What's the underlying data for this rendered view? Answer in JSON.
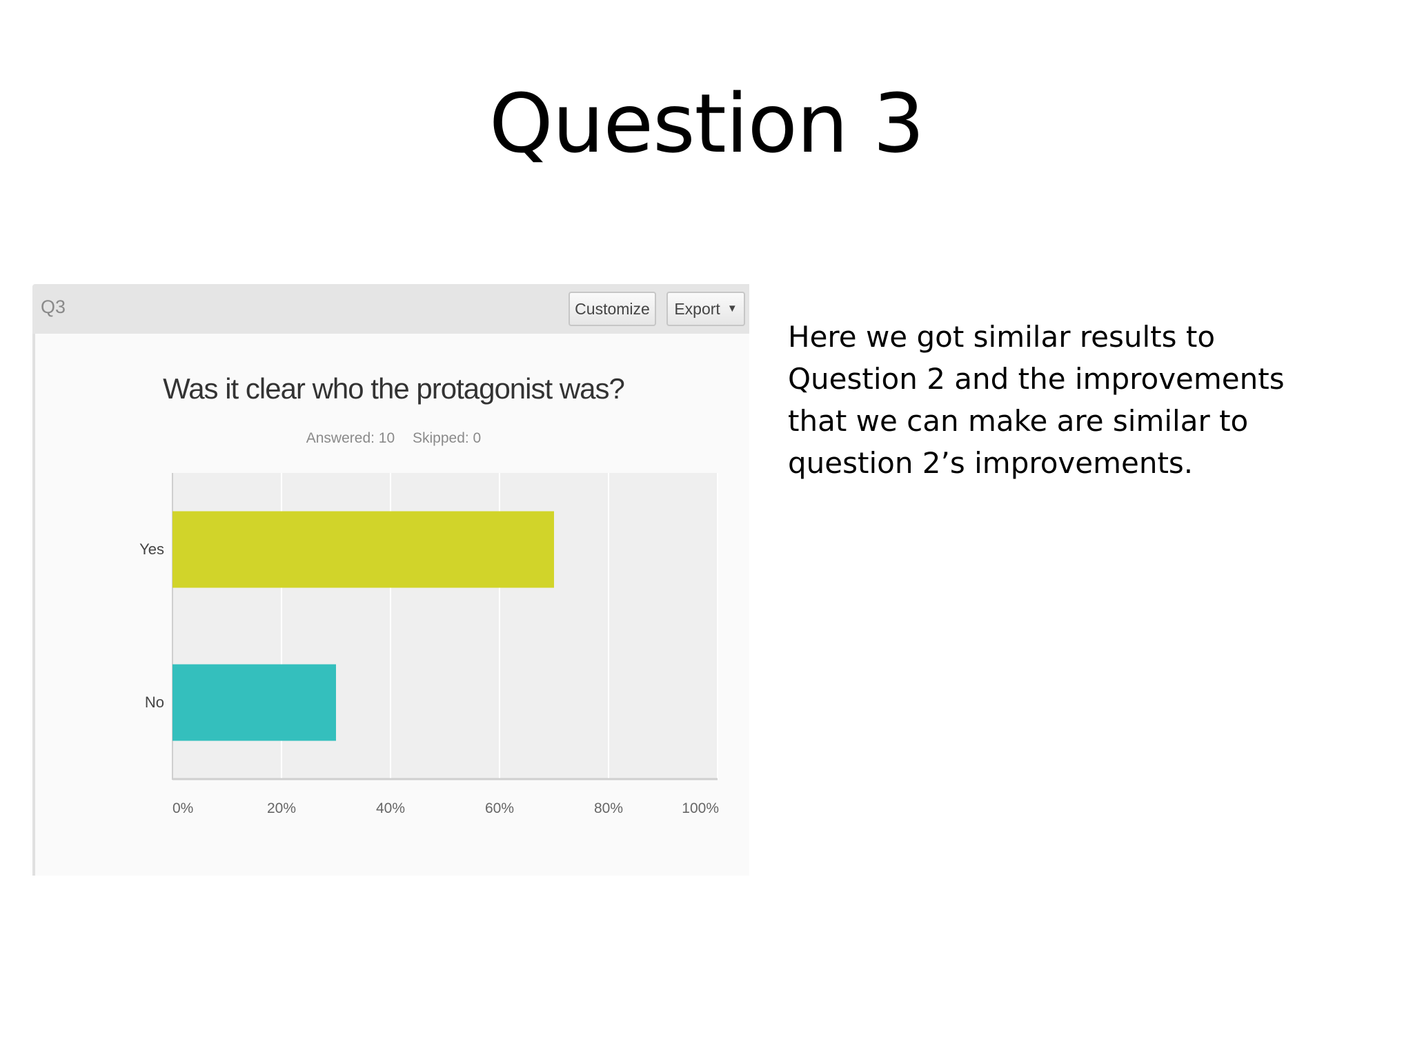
{
  "slide": {
    "title": "Question 3",
    "body_lines": [
      "Here we got similar results to",
      "Question 2 and the improvements",
      "that we can make are similar to",
      "question 2’s improvements."
    ]
  },
  "panel": {
    "question_id": "Q3",
    "customize_label": "Customize",
    "export_label": "Export",
    "export_caret": "▼",
    "chart_title": "Was it clear who the protagonist was?",
    "answered": "Answered: 10",
    "skipped": "Skipped: 0"
  },
  "chart_data": {
    "type": "bar",
    "orientation": "horizontal",
    "title": "Was it clear who the protagonist was?",
    "categories": [
      "Yes",
      "No"
    ],
    "values": [
      70,
      30
    ],
    "value_unit": "%",
    "xlim": [
      0,
      100
    ],
    "x_ticks": [
      "0%",
      "20%",
      "40%",
      "60%",
      "80%",
      "100%"
    ],
    "bar_colors": [
      "#d1d42a",
      "#34bfbd"
    ],
    "plot_background": "#efefef",
    "grid": true
  }
}
